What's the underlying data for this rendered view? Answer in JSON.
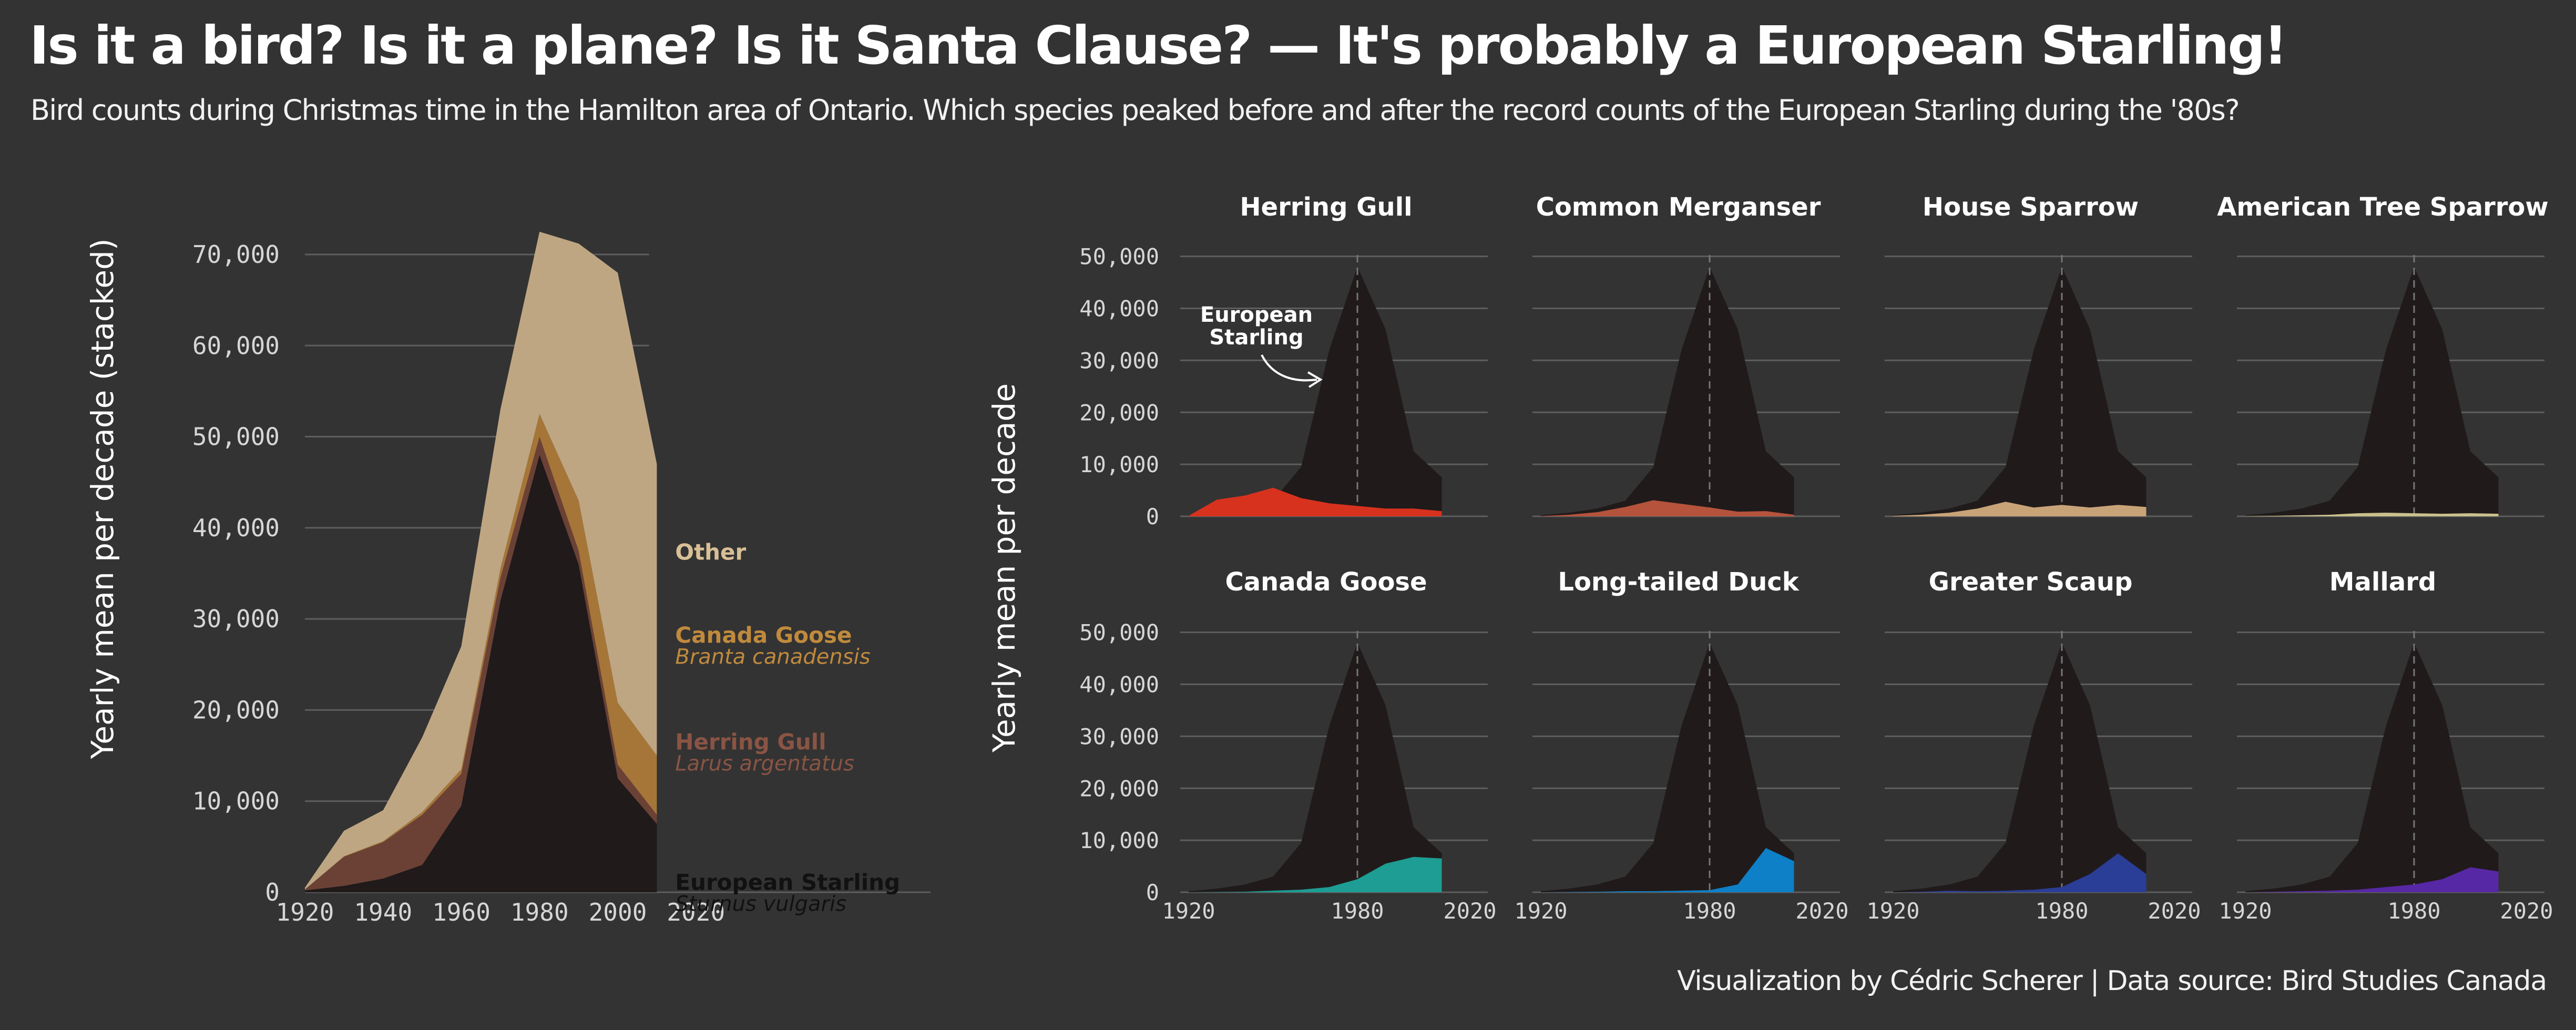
{
  "title": "Is it a bird? Is it a plane? Is it Santa Clause?  —  It's probably a European Starling!",
  "subtitle": "Bird counts during Christmas time in the Hamilton area of Ontario. Which species peaked before and after the record counts of the European Starling during the '80s?",
  "caption": "Visualization by Cédric Scherer  |  Data source: Bird Studies Canada",
  "colors": {
    "background": "#333333",
    "starling": "#201a1a",
    "herring_gull": "#6b4136",
    "canada_goose": "#a57638",
    "other": "#bfa683",
    "gridline": "#5e5e5e"
  },
  "chart_data": [
    {
      "type": "area",
      "stacked": true,
      "ylabel": "Yearly mean per decade (stacked)",
      "x": [
        1920,
        1930,
        1940,
        1950,
        1960,
        1970,
        1980,
        1990,
        2000,
        2010
      ],
      "xticks": [
        1920,
        1940,
        1960,
        1980,
        2000,
        2020
      ],
      "xlim": [
        1920,
        2080
      ],
      "ylim": [
        0,
        76000
      ],
      "yticks": [
        0,
        10000,
        20000,
        30000,
        40000,
        50000,
        60000,
        70000
      ],
      "ytick_labels": [
        "0",
        "10,000",
        "20,000",
        "30,000",
        "40,000",
        "50,000",
        "60,000",
        "70,000"
      ],
      "grid": true,
      "series": [
        {
          "key": "starling",
          "name": "European Starling",
          "latin": "Sturnus vulgaris",
          "color": "#201a1a",
          "label_color": "#111111",
          "values": [
            200,
            700,
            1500,
            3000,
            9500,
            32000,
            48000,
            36000,
            12500,
            7500
          ]
        },
        {
          "key": "gull",
          "name": "Herring Gull",
          "latin": "Larus argentatus",
          "color": "#6b4136",
          "label_color": "#8a5444",
          "values": [
            100,
            3200,
            4000,
            5500,
            3500,
            2500,
            2000,
            1500,
            1500,
            1000
          ]
        },
        {
          "key": "goose",
          "name": "Canada Goose",
          "latin": "Branta canadensis",
          "color": "#a57638",
          "label_color": "#c08a3d",
          "values": [
            0,
            50,
            100,
            300,
            500,
            1000,
            2500,
            5500,
            6800,
            6500
          ]
        },
        {
          "key": "other",
          "name": "Other",
          "latin": "",
          "color": "#bfa683",
          "label_color": "#d9bf96",
          "values": [
            200,
            2800,
            3400,
            8200,
            13500,
            17500,
            20000,
            28200,
            47200,
            32000
          ]
        }
      ],
      "legend_placement": "right"
    },
    {
      "type": "area",
      "layout": "small-multiples",
      "ylabel": "Yearly mean per decade",
      "x": [
        1920,
        1930,
        1940,
        1950,
        1960,
        1970,
        1980,
        1990,
        2000,
        2010
      ],
      "xticks": [
        1920,
        1980,
        2020
      ],
      "ylim": [
        0,
        52000
      ],
      "yticks": [
        0,
        10000,
        20000,
        30000,
        40000,
        50000
      ],
      "ytick_labels": [
        "0",
        "10,000",
        "20,000",
        "30,000",
        "40,000",
        "50,000"
      ],
      "reference_line_x": 1980,
      "background_series": {
        "name": "European Starling",
        "color": "#201a1a",
        "values": [
          200,
          700,
          1500,
          3000,
          9500,
          32000,
          48000,
          36000,
          12500,
          7500
        ]
      },
      "annotation": {
        "text_line1": "European",
        "text_line2": "Starling"
      },
      "panels": [
        {
          "title": "Herring Gull",
          "color": "#d7321e",
          "values": [
            100,
            3200,
            4000,
            5500,
            3500,
            2500,
            2000,
            1500,
            1500,
            1000
          ]
        },
        {
          "title": "Common Merganser",
          "color": "#b5533c",
          "values": [
            50,
            300,
            800,
            1800,
            3100,
            2400,
            1700,
            900,
            1000,
            300
          ]
        },
        {
          "title": "House Sparrow",
          "color": "#c9a378",
          "values": [
            100,
            300,
            700,
            1500,
            2800,
            1700,
            2200,
            1700,
            2200,
            1800
          ]
        },
        {
          "title": "American Tree Sparrow",
          "color": "#c9c08c",
          "values": [
            50,
            100,
            200,
            300,
            600,
            700,
            600,
            500,
            600,
            500
          ]
        },
        {
          "title": "Canada Goose",
          "color": "#1d9d93",
          "values": [
            0,
            50,
            100,
            300,
            500,
            1000,
            2500,
            5500,
            6800,
            6500
          ]
        },
        {
          "title": "Long-tailed Duck",
          "color": "#0d80c7",
          "values": [
            0,
            50,
            100,
            200,
            200,
            300,
            400,
            1500,
            8500,
            6000
          ]
        },
        {
          "title": "Greater Scaup",
          "color": "#2a3d97",
          "values": [
            0,
            100,
            300,
            200,
            300,
            500,
            1000,
            3500,
            7500,
            3500
          ]
        },
        {
          "title": "Mallard",
          "color": "#5728a5",
          "values": [
            0,
            100,
            200,
            300,
            500,
            1000,
            1500,
            2500,
            4800,
            4000
          ]
        }
      ]
    }
  ]
}
